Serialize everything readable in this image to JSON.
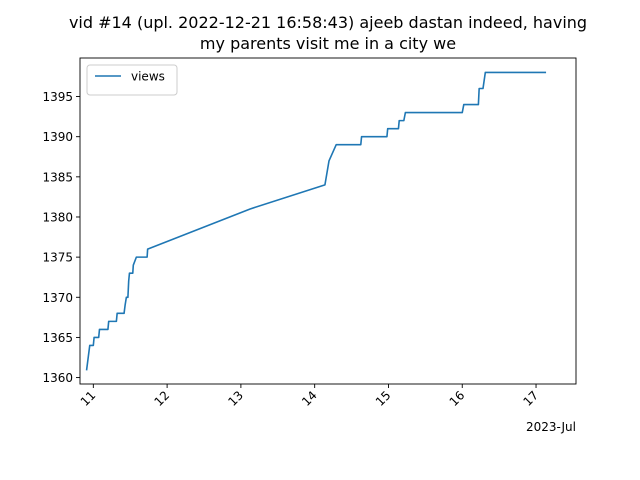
{
  "chart_data": {
    "type": "line",
    "title_lines": [
      "vid #14 (upl. 2022-12-21 16:58:43) ajeeb dastan indeed, having",
      "my parents visit me in a city we"
    ],
    "xlabel": "",
    "ylabel": "",
    "x_axis": {
      "kind": "date",
      "range": [
        "2023-07-10T19:40",
        "2023-07-17T13:00"
      ],
      "ticks": [
        {
          "value": "2023-07-11T00:00",
          "label": "11"
        },
        {
          "value": "2023-07-12T00:00",
          "label": "12"
        },
        {
          "value": "2023-07-13T00:00",
          "label": "13"
        },
        {
          "value": "2023-07-14T00:00",
          "label": "14"
        },
        {
          "value": "2023-07-15T00:00",
          "label": "15"
        },
        {
          "value": "2023-07-16T00:00",
          "label": "16"
        },
        {
          "value": "2023-07-17T00:00",
          "label": "17"
        }
      ],
      "offset_label": "2023-Jul"
    },
    "y_axis": {
      "range": [
        1359.2,
        1399.8
      ],
      "ticks": [
        1360,
        1365,
        1370,
        1375,
        1380,
        1385,
        1390,
        1395
      ]
    },
    "grid": false,
    "legend": {
      "position": "top-left",
      "entries": [
        "views"
      ]
    },
    "series": [
      {
        "name": "views",
        "color": "#1f77b4",
        "points": [
          [
            "2023-07-10T21:50",
            1361
          ],
          [
            "2023-07-10T22:50",
            1364
          ],
          [
            "2023-07-11T00:00",
            1364
          ],
          [
            "2023-07-11T00:15",
            1365
          ],
          [
            "2023-07-11T01:45",
            1365
          ],
          [
            "2023-07-11T02:00",
            1366
          ],
          [
            "2023-07-11T04:45",
            1366
          ],
          [
            "2023-07-11T05:00",
            1367
          ],
          [
            "2023-07-11T07:30",
            1367
          ],
          [
            "2023-07-11T07:45",
            1368
          ],
          [
            "2023-07-11T10:00",
            1368
          ],
          [
            "2023-07-11T10:20",
            1369
          ],
          [
            "2023-07-11T10:45",
            1370
          ],
          [
            "2023-07-11T11:15",
            1370
          ],
          [
            "2023-07-11T11:30",
            1372
          ],
          [
            "2023-07-11T11:45",
            1373
          ],
          [
            "2023-07-11T12:50",
            1373
          ],
          [
            "2023-07-11T13:00",
            1374
          ],
          [
            "2023-07-11T14:00",
            1375
          ],
          [
            "2023-07-11T17:30",
            1375
          ],
          [
            "2023-07-11T17:40",
            1376
          ],
          [
            "2023-07-13T03:00",
            1381
          ],
          [
            "2023-07-14T03:20",
            1384
          ],
          [
            "2023-07-14T04:40",
            1387
          ],
          [
            "2023-07-14T07:00",
            1389
          ],
          [
            "2023-07-14T15:00",
            1389
          ],
          [
            "2023-07-14T15:15",
            1390
          ],
          [
            "2023-07-14T23:30",
            1390
          ],
          [
            "2023-07-14T23:45",
            1391
          ],
          [
            "2023-07-15T03:15",
            1391
          ],
          [
            "2023-07-15T03:30",
            1392
          ],
          [
            "2023-07-15T05:00",
            1392
          ],
          [
            "2023-07-15T05:30",
            1393
          ],
          [
            "2023-07-16T00:00",
            1393
          ],
          [
            "2023-07-16T00:30",
            1394
          ],
          [
            "2023-07-16T05:15",
            1394
          ],
          [
            "2023-07-16T05:30",
            1396
          ],
          [
            "2023-07-16T06:45",
            1396
          ],
          [
            "2023-07-16T07:30",
            1398
          ],
          [
            "2023-07-17T03:00",
            1398
          ]
        ]
      }
    ]
  }
}
